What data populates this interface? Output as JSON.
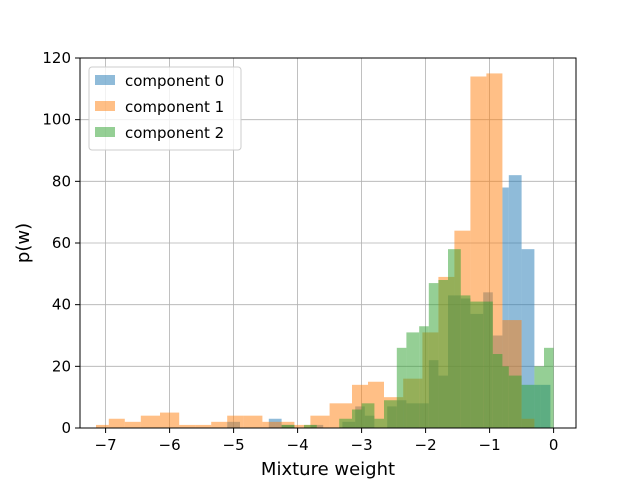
{
  "chart_data": {
    "type": "histogram",
    "title": "",
    "xlabel": "Mixture weight",
    "ylabel": "p(w)",
    "xlim": [
      -7.4,
      0.35
    ],
    "ylim": [
      0,
      120
    ],
    "xticks": [
      -7,
      -6,
      -5,
      -4,
      -3,
      -2,
      -1,
      0
    ],
    "xtick_labels": [
      "−7",
      "−6",
      "−5",
      "−4",
      "−3",
      "−2",
      "−1",
      "0"
    ],
    "yticks": [
      0,
      20,
      40,
      60,
      80,
      100,
      120
    ],
    "ytick_labels": [
      "0",
      "20",
      "40",
      "60",
      "80",
      "100",
      "120"
    ],
    "grid": true,
    "legend_position": "top-left",
    "series": [
      {
        "name": "component 0",
        "color": "#1f77b4",
        "opacity": 0.5,
        "bins": [
          [
            -5.1,
            -4.9,
            2
          ],
          [
            -4.45,
            -4.25,
            3
          ],
          [
            -4.25,
            -4.05,
            1
          ],
          [
            -3.8,
            -3.6,
            1
          ],
          [
            -3.3,
            -3.1,
            2
          ],
          [
            -3.1,
            -2.95,
            7
          ],
          [
            -2.95,
            -2.8,
            4
          ],
          [
            -2.6,
            -2.45,
            7
          ],
          [
            -2.45,
            -2.3,
            9
          ],
          [
            -2.3,
            -2.1,
            8
          ],
          [
            -2.1,
            -1.95,
            8
          ],
          [
            -1.95,
            -1.8,
            22
          ],
          [
            -1.8,
            -1.65,
            17
          ],
          [
            -1.65,
            -1.45,
            43
          ],
          [
            -1.45,
            -1.3,
            42
          ],
          [
            -1.3,
            -1.1,
            37
          ],
          [
            -1.1,
            -0.95,
            44
          ],
          [
            -0.95,
            -0.8,
            30
          ],
          [
            -0.8,
            -0.7,
            78
          ],
          [
            -0.7,
            -0.5,
            82
          ],
          [
            -0.5,
            -0.3,
            58
          ],
          [
            -0.3,
            -0.2,
            14
          ],
          [
            -0.2,
            -0.05,
            14
          ]
        ]
      },
      {
        "name": "component 1",
        "color": "#ff7f0e",
        "opacity": 0.5,
        "bins": [
          [
            -7.15,
            -6.95,
            1
          ],
          [
            -6.95,
            -6.7,
            3
          ],
          [
            -6.7,
            -6.45,
            2
          ],
          [
            -6.45,
            -6.15,
            4
          ],
          [
            -6.15,
            -5.85,
            5
          ],
          [
            -5.85,
            -5.6,
            1
          ],
          [
            -5.6,
            -5.35,
            1
          ],
          [
            -5.35,
            -5.1,
            2
          ],
          [
            -5.1,
            -4.85,
            4
          ],
          [
            -4.85,
            -4.55,
            4
          ],
          [
            -4.55,
            -4.35,
            2
          ],
          [
            -4.35,
            -4.05,
            2
          ],
          [
            -4.05,
            -3.8,
            1
          ],
          [
            -3.8,
            -3.5,
            4
          ],
          [
            -3.5,
            -3.15,
            8
          ],
          [
            -3.15,
            -2.9,
            14
          ],
          [
            -2.9,
            -2.65,
            15
          ],
          [
            -2.65,
            -2.35,
            10
          ],
          [
            -2.35,
            -2.05,
            16
          ],
          [
            -2.05,
            -1.8,
            31
          ],
          [
            -1.8,
            -1.55,
            49
          ],
          [
            -1.55,
            -1.3,
            64
          ],
          [
            -1.3,
            -1.05,
            114
          ],
          [
            -1.05,
            -0.8,
            115
          ],
          [
            -0.8,
            -0.5,
            35
          ],
          [
            -0.5,
            -0.3,
            3
          ]
        ]
      },
      {
        "name": "component 2",
        "color": "#2ca02c",
        "opacity": 0.5,
        "bins": [
          [
            -4.25,
            -4.05,
            1
          ],
          [
            -3.9,
            -3.7,
            1
          ],
          [
            -3.35,
            -3.15,
            3
          ],
          [
            -3.15,
            -3.0,
            6
          ],
          [
            -3.0,
            -2.8,
            8
          ],
          [
            -2.8,
            -2.65,
            3
          ],
          [
            -2.65,
            -2.45,
            9
          ],
          [
            -2.45,
            -2.3,
            26
          ],
          [
            -2.3,
            -2.1,
            31
          ],
          [
            -2.1,
            -1.95,
            33
          ],
          [
            -1.95,
            -1.8,
            47
          ],
          [
            -1.8,
            -1.65,
            48
          ],
          [
            -1.65,
            -1.45,
            58
          ],
          [
            -1.45,
            -1.3,
            43
          ],
          [
            -1.3,
            -1.1,
            41
          ],
          [
            -1.1,
            -0.95,
            41
          ],
          [
            -0.95,
            -0.8,
            24
          ],
          [
            -0.8,
            -0.7,
            20
          ],
          [
            -0.7,
            -0.5,
            17
          ],
          [
            -0.5,
            -0.3,
            14
          ],
          [
            -0.3,
            -0.15,
            20
          ],
          [
            -0.15,
            0.0,
            26
          ]
        ]
      }
    ]
  }
}
